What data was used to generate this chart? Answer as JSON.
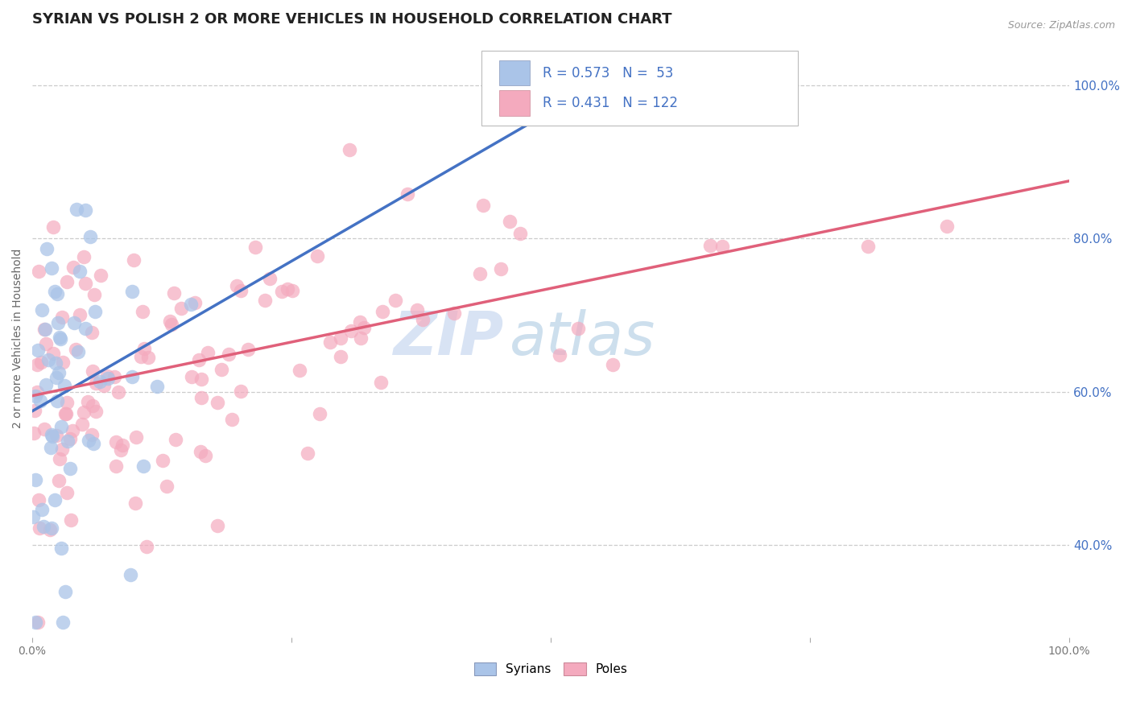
{
  "title": "SYRIAN VS POLISH 2 OR MORE VEHICLES IN HOUSEHOLD CORRELATION CHART",
  "source_text": "Source: ZipAtlas.com",
  "ylabel": "2 or more Vehicles in Household",
  "xlim": [
    0.0,
    1.0
  ],
  "ylim": [
    0.28,
    1.06
  ],
  "right_yticklabels": [
    "40.0%",
    "60.0%",
    "80.0%",
    "100.0%"
  ],
  "right_ytick_vals": [
    0.4,
    0.6,
    0.8,
    1.0
  ],
  "legend_r1": "R = 0.573",
  "legend_n1": "N =  53",
  "legend_r2": "R = 0.431",
  "legend_n2": "N = 122",
  "legend_label1": "Syrians",
  "legend_label2": "Poles",
  "color_syrian": "#aac4e8",
  "color_polish": "#f4aabe",
  "color_line_syrian": "#4472c4",
  "color_line_polish": "#e0607a",
  "color_legend_text": "#4472c4",
  "watermark_zip": "ZIP",
  "watermark_atlas": "atlas",
  "title_fontsize": 13,
  "axis_label_fontsize": 10,
  "tick_fontsize": 10,
  "background_color": "#ffffff",
  "grid_color": "#cccccc",
  "syrian_line_x0": 0.0,
  "syrian_line_y0": 0.575,
  "syrian_line_x1": 0.55,
  "syrian_line_y1": 1.005,
  "polish_line_x0": 0.0,
  "polish_line_y0": 0.595,
  "polish_line_x1": 1.0,
  "polish_line_y1": 0.875
}
